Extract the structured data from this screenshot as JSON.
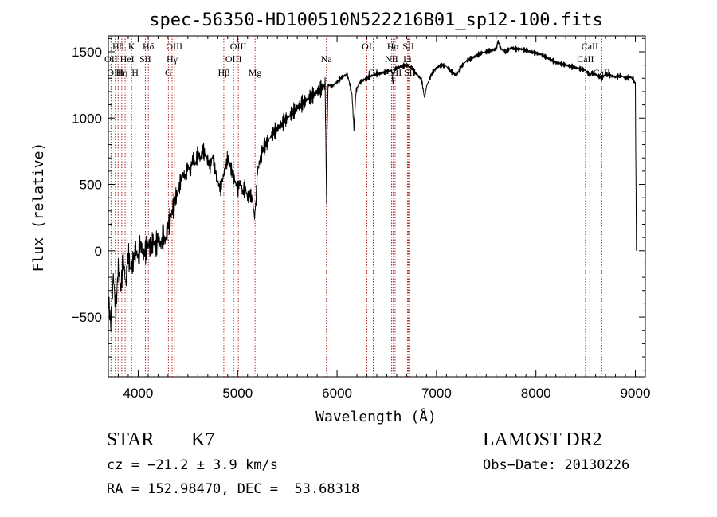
{
  "chart_data": {
    "type": "line",
    "title": "spec-56350-HD100510N522216B01_sp12-100.fits",
    "xlabel": "Wavelength (Å)",
    "ylabel": "Flux (relative)",
    "xlim": [
      3700,
      9100
    ],
    "ylim": [
      -950,
      1620
    ],
    "x_ticks": [
      4000,
      5000,
      6000,
      7000,
      8000,
      9000
    ],
    "x_tick_labels": [
      "4000",
      "5000",
      "6000",
      "7000",
      "8000",
      "9000"
    ],
    "y_ticks": [
      -500,
      0,
      500,
      1000,
      1500
    ],
    "y_tick_labels": [
      "−500",
      "0",
      "500",
      "1000",
      "1500"
    ],
    "grid": false,
    "line_color": "#000000",
    "marker_color": "#b22222",
    "series": [
      {
        "values": [
          [
            3700,
            -350
          ],
          [
            3725,
            -560
          ],
          [
            3750,
            -180
          ],
          [
            3775,
            -460
          ],
          [
            3800,
            -120
          ],
          [
            3825,
            -300
          ],
          [
            3850,
            -60
          ],
          [
            3875,
            -250
          ],
          [
            3900,
            -20
          ],
          [
            3925,
            -150
          ],
          [
            3950,
            -80
          ],
          [
            3975,
            10
          ],
          [
            4000,
            -50
          ],
          [
            4025,
            60
          ],
          [
            4050,
            -30
          ],
          [
            4075,
            0
          ],
          [
            4100,
            50
          ],
          [
            4125,
            20
          ],
          [
            4150,
            70
          ],
          [
            4175,
            30
          ],
          [
            4200,
            90
          ],
          [
            4225,
            40
          ],
          [
            4250,
            110
          ],
          [
            4275,
            80
          ],
          [
            4300,
            180
          ],
          [
            4325,
            250
          ],
          [
            4350,
            320
          ],
          [
            4375,
            400
          ],
          [
            4400,
            440
          ],
          [
            4425,
            520
          ],
          [
            4450,
            580
          ],
          [
            4475,
            560
          ],
          [
            4500,
            640
          ],
          [
            4525,
            600
          ],
          [
            4550,
            700
          ],
          [
            4575,
            650
          ],
          [
            4600,
            740
          ],
          [
            4625,
            690
          ],
          [
            4650,
            760
          ],
          [
            4675,
            720
          ],
          [
            4700,
            680
          ],
          [
            4725,
            640
          ],
          [
            4750,
            720
          ],
          [
            4775,
            600
          ],
          [
            4800,
            520
          ],
          [
            4825,
            470
          ],
          [
            4850,
            540
          ],
          [
            4875,
            620
          ],
          [
            4900,
            700
          ],
          [
            4925,
            640
          ],
          [
            4950,
            580
          ],
          [
            4975,
            520
          ],
          [
            5000,
            460
          ],
          [
            5025,
            520
          ],
          [
            5050,
            440
          ],
          [
            5075,
            480
          ],
          [
            5100,
            400
          ],
          [
            5125,
            430
          ],
          [
            5150,
            380
          ],
          [
            5170,
            250
          ],
          [
            5185,
            380
          ],
          [
            5200,
            600
          ],
          [
            5225,
            680
          ],
          [
            5250,
            760
          ],
          [
            5300,
            820
          ],
          [
            5350,
            880
          ],
          [
            5400,
            920
          ],
          [
            5450,
            960
          ],
          [
            5500,
            1000
          ],
          [
            5550,
            1040
          ],
          [
            5600,
            1080
          ],
          [
            5650,
            1110
          ],
          [
            5700,
            1140
          ],
          [
            5750,
            1170
          ],
          [
            5800,
            1200
          ],
          [
            5850,
            1230
          ],
          [
            5880,
            1250
          ],
          [
            5890,
            700
          ],
          [
            5895,
            350
          ],
          [
            5900,
            900
          ],
          [
            5910,
            1250
          ],
          [
            5950,
            1240
          ],
          [
            6000,
            1270
          ],
          [
            6050,
            1310
          ],
          [
            6100,
            1330
          ],
          [
            6120,
            1280
          ],
          [
            6150,
            1180
          ],
          [
            6170,
            920
          ],
          [
            6190,
            1200
          ],
          [
            6220,
            1260
          ],
          [
            6250,
            1280
          ],
          [
            6300,
            1300
          ],
          [
            6350,
            1320
          ],
          [
            6400,
            1330
          ],
          [
            6450,
            1340
          ],
          [
            6500,
            1350
          ],
          [
            6550,
            1360
          ],
          [
            6563,
            1250
          ],
          [
            6580,
            1370
          ],
          [
            6600,
            1380
          ],
          [
            6650,
            1390
          ],
          [
            6700,
            1400
          ],
          [
            6750,
            1380
          ],
          [
            6800,
            1330
          ],
          [
            6850,
            1290
          ],
          [
            6880,
            1150
          ],
          [
            6900,
            1240
          ],
          [
            6950,
            1330
          ],
          [
            7000,
            1380
          ],
          [
            7050,
            1400
          ],
          [
            7100,
            1390
          ],
          [
            7150,
            1350
          ],
          [
            7200,
            1320
          ],
          [
            7250,
            1390
          ],
          [
            7300,
            1430
          ],
          [
            7350,
            1450
          ],
          [
            7400,
            1470
          ],
          [
            7450,
            1490
          ],
          [
            7500,
            1500
          ],
          [
            7550,
            1510
          ],
          [
            7600,
            1520
          ],
          [
            7620,
            1580
          ],
          [
            7650,
            1520
          ],
          [
            7700,
            1500
          ],
          [
            7750,
            1530
          ],
          [
            7800,
            1520
          ],
          [
            7850,
            1520
          ],
          [
            7900,
            1510
          ],
          [
            7950,
            1500
          ],
          [
            8000,
            1490
          ],
          [
            8050,
            1480
          ],
          [
            8100,
            1460
          ],
          [
            8150,
            1440
          ],
          [
            8200,
            1420
          ],
          [
            8250,
            1410
          ],
          [
            8300,
            1400
          ],
          [
            8350,
            1390
          ],
          [
            8400,
            1380
          ],
          [
            8450,
            1370
          ],
          [
            8500,
            1360
          ],
          [
            8542,
            1320
          ],
          [
            8560,
            1340
          ],
          [
            8600,
            1330
          ],
          [
            8662,
            1300
          ],
          [
            8700,
            1330
          ],
          [
            8750,
            1320
          ],
          [
            8800,
            1310
          ],
          [
            8850,
            1320
          ],
          [
            8900,
            1300
          ],
          [
            8950,
            1310
          ],
          [
            8980,
            1290
          ],
          [
            9000,
            1260
          ],
          [
            9010,
            0
          ]
        ]
      }
    ],
    "markers": [
      {
        "x": 3727,
        "label": "OII",
        "row": 1
      },
      {
        "x": 3770,
        "label": "OIII",
        "row": 2
      },
      {
        "x": 3798,
        "label": "Hθ",
        "row": 0
      },
      {
        "x": 3835,
        "label": "Hη",
        "row": 2
      },
      {
        "x": 3869,
        "label": "",
        "row": 0
      },
      {
        "x": 3889,
        "label": "HeI",
        "row": 1
      },
      {
        "x": 3934,
        "label": "K",
        "row": 0
      },
      {
        "x": 3969,
        "label": "H",
        "row": 2
      },
      {
        "x": 4072,
        "label": "SII",
        "row": 1
      },
      {
        "x": 4102,
        "label": "Hδ",
        "row": 0
      },
      {
        "x": 4304,
        "label": "G",
        "row": 2
      },
      {
        "x": 4341,
        "label": "Hγ",
        "row": 1
      },
      {
        "x": 4363,
        "label": "OIII",
        "row": 0
      },
      {
        "x": 4861,
        "label": "Hβ",
        "row": 2
      },
      {
        "x": 4959,
        "label": "OIII",
        "row": 1
      },
      {
        "x": 5007,
        "label": "OIII",
        "row": 0
      },
      {
        "x": 5175,
        "label": "Mg",
        "row": 2
      },
      {
        "x": 5893,
        "label": "Na",
        "row": 1
      },
      {
        "x": 6300,
        "label": "OI",
        "row": 0
      },
      {
        "x": 6364,
        "label": "OI",
        "row": 2
      },
      {
        "x": 6548,
        "label": "NII",
        "row": 1
      },
      {
        "x": 6563,
        "label": "Hα",
        "row": 0
      },
      {
        "x": 6584,
        "label": "NII",
        "row": 2
      },
      {
        "x": 6708,
        "label": "Li",
        "row": 1
      },
      {
        "x": 6717,
        "label": "SII",
        "row": 0
      },
      {
        "x": 6731,
        "label": "SII",
        "row": 2
      },
      {
        "x": 8498,
        "label": "CaII",
        "row": 1
      },
      {
        "x": 8542,
        "label": "CaII",
        "row": 0
      },
      {
        "x": 8662,
        "label": "CaII",
        "row": 2
      }
    ]
  },
  "info": {
    "class_label": "STAR",
    "subclass": "K7",
    "survey": "LAMOST DR2",
    "cz": "cz = −21.2 ± 3.9 km/s",
    "obs_date": "Obs−Date: 20130226",
    "coords": "RA = 152.98470, DEC =  53.68318"
  }
}
